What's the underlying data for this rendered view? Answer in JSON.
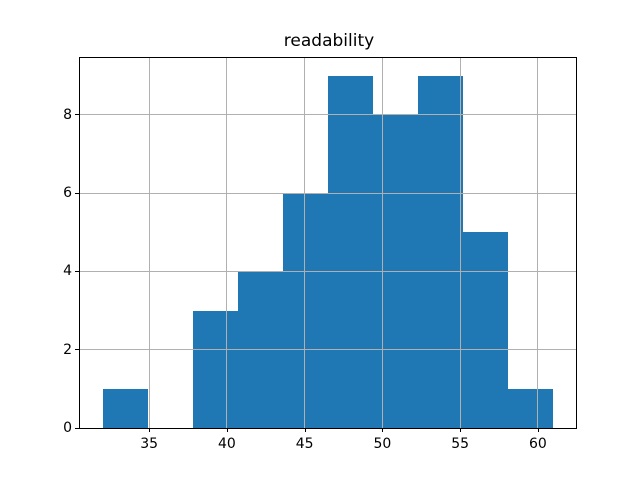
{
  "chart_data": {
    "type": "histogram",
    "title": "readability",
    "xlabel": "",
    "ylabel": "",
    "bin_edges": [
      32.0,
      34.9,
      37.8,
      40.7,
      43.6,
      46.5,
      49.4,
      52.3,
      55.2,
      58.1,
      61.0
    ],
    "counts": [
      1,
      0,
      3,
      4,
      6,
      9,
      8,
      9,
      5,
      1
    ],
    "xticks": [
      35,
      40,
      45,
      50,
      55,
      60
    ],
    "yticks": [
      0,
      2,
      4,
      6,
      8
    ],
    "xlim": [
      30.55,
      62.45
    ],
    "ylim": [
      0,
      9.45
    ],
    "grid": true,
    "grid_on_top": true,
    "bar_color": "#1f77b4",
    "grid_color": "#b0b0b0",
    "spine_color": "#000000",
    "background_color": "#ffffff"
  }
}
